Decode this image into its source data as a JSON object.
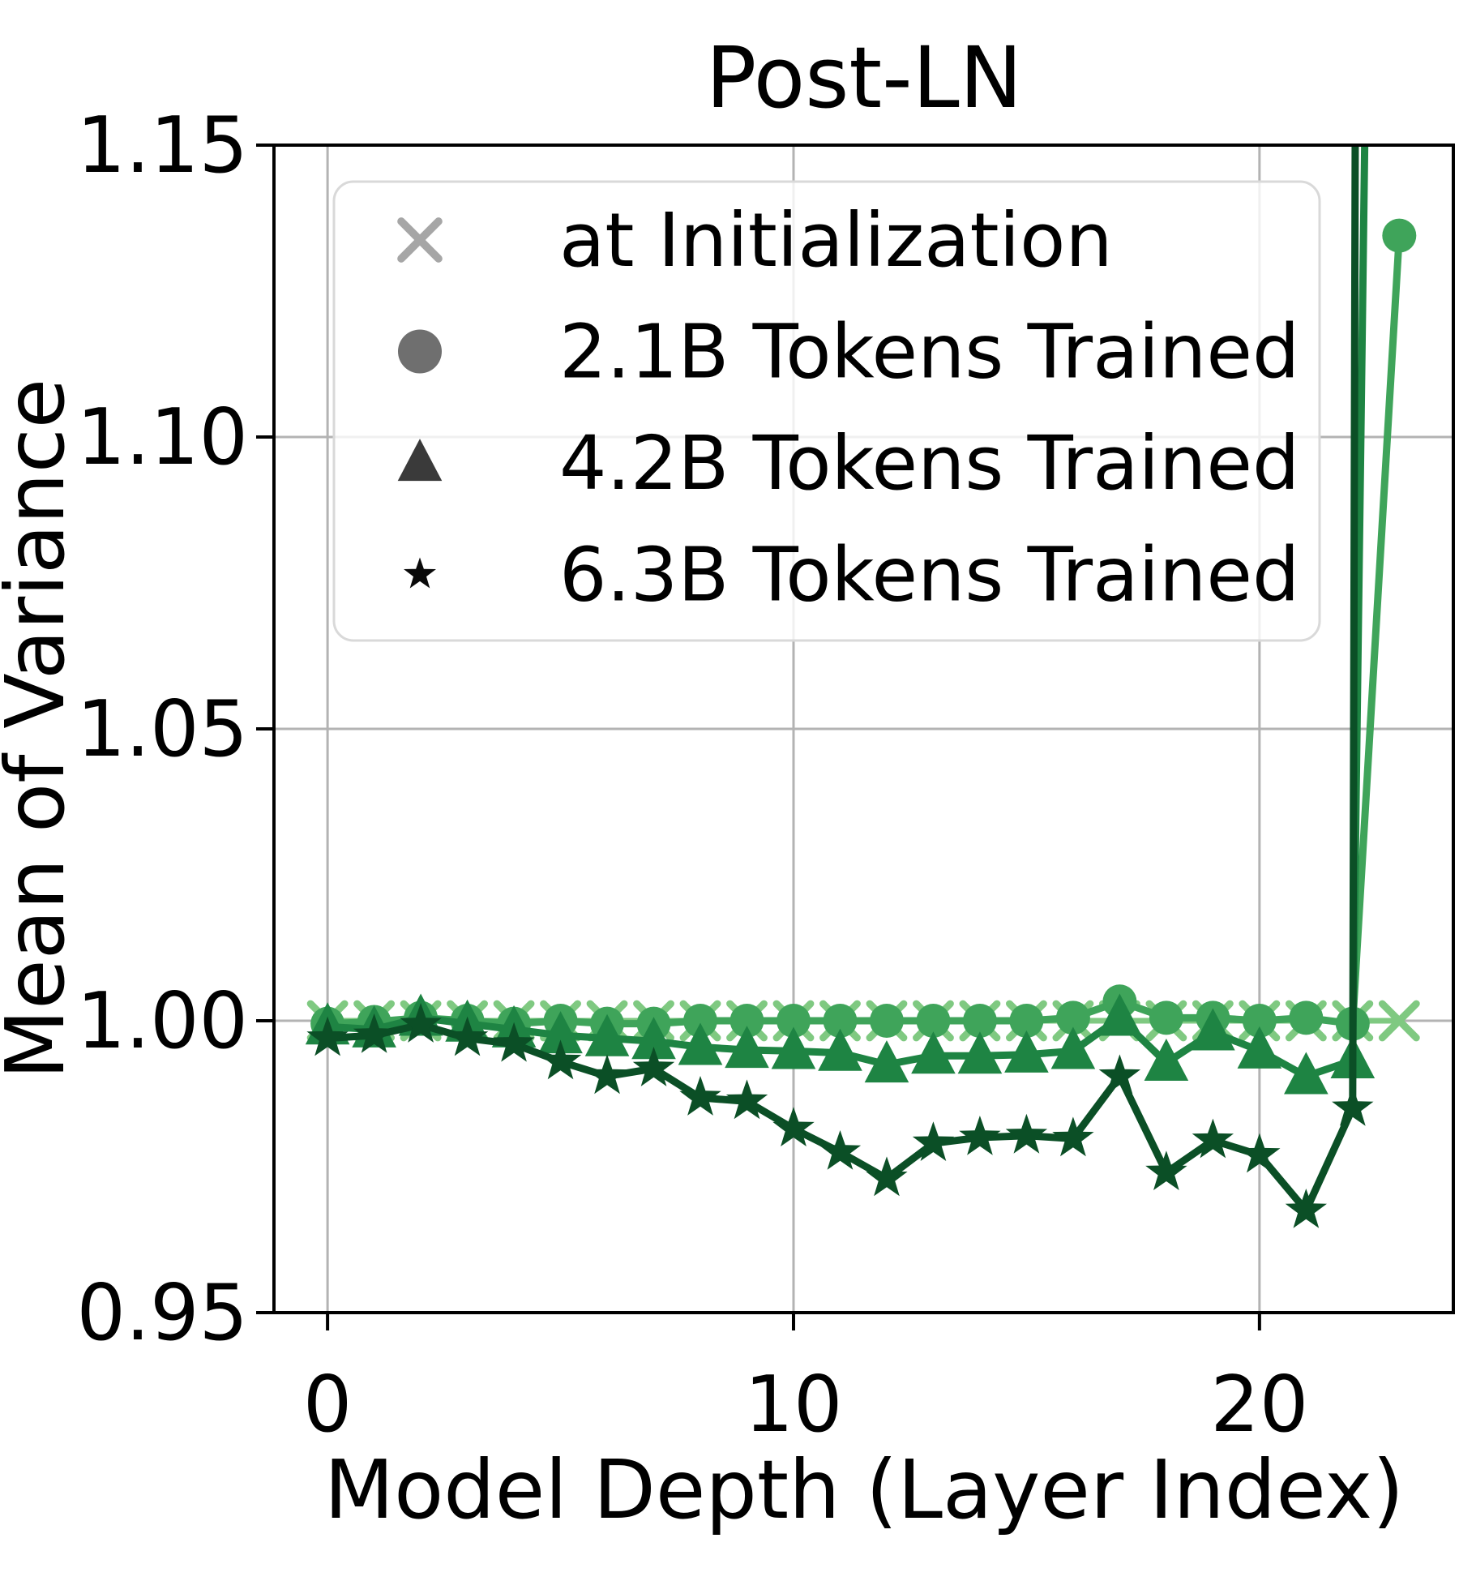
{
  "chart_data": {
    "type": "line",
    "title": "Post-LN",
    "xlabel": "Model Depth (Layer Index)",
    "ylabel": "Mean of Variance",
    "xlim": [
      -1.15,
      24.16
    ],
    "ylim": [
      0.95,
      1.15
    ],
    "grid": true,
    "legend_position": "upper left",
    "xticks": [
      {
        "v": 0,
        "label": "0"
      },
      {
        "v": 10,
        "label": "10"
      },
      {
        "v": 20,
        "label": "20"
      }
    ],
    "yticks": [
      {
        "v": 0.95,
        "label": "0.95"
      },
      {
        "v": 1.0,
        "label": "1.00"
      },
      {
        "v": 1.05,
        "label": "1.05"
      },
      {
        "v": 1.1,
        "label": "1.10"
      },
      {
        "v": 1.15,
        "label": "1.15"
      }
    ],
    "x": [
      0,
      1,
      2,
      3,
      4,
      5,
      6,
      7,
      8,
      9,
      10,
      11,
      12,
      13,
      14,
      15,
      16,
      17,
      18,
      19,
      20,
      21,
      22,
      23
    ],
    "series": [
      {
        "name": "at Initialization",
        "marker": "x",
        "color": "#7fc981",
        "legend_color": "#a6a6a6",
        "values": [
          1.0,
          1.0,
          1.0,
          1.0,
          1.0,
          1.0,
          1.0,
          1.0,
          1.0,
          1.0,
          1.0,
          1.0,
          1.0,
          1.0,
          1.0,
          1.0,
          1.0,
          1.0,
          1.0,
          1.0,
          1.0,
          1.0,
          1.0,
          1.0
        ]
      },
      {
        "name": "2.1B Tokens Trained",
        "marker": "circle",
        "color": "#3fa45a",
        "legend_color": "#6f6f6f",
        "values": [
          0.9995,
          0.9998,
          1.0005,
          1.0,
          0.9995,
          1.0,
          0.9995,
          0.9995,
          1.0,
          1.0,
          1.0,
          1.0,
          1.0,
          1.0,
          1.0,
          1.0,
          1.0005,
          1.0033,
          1.0005,
          1.0005,
          1.0,
          1.0005,
          0.9995,
          1.1345
        ]
      },
      {
        "name": "4.2B Tokens Trained",
        "marker": "triangle",
        "color": "#1e8443",
        "legend_color": "#3a3a3a",
        "values": [
          0.999,
          0.9985,
          1.0005,
          0.9995,
          0.9985,
          0.9975,
          0.997,
          0.9965,
          0.9955,
          0.995,
          0.9948,
          0.9945,
          0.9925,
          0.994,
          0.994,
          0.9942,
          0.9948,
          1.0005,
          0.9928,
          0.998,
          0.9949,
          0.9905,
          0.9932,
          1.6
        ]
      },
      {
        "name": "6.3B Tokens Trained",
        "marker": "star",
        "color": "#0b4f26",
        "legend_color": "#0a0a0a",
        "values": [
          0.997,
          0.9975,
          0.9993,
          0.997,
          0.996,
          0.993,
          0.9905,
          0.9918,
          0.9868,
          0.9862,
          0.9815,
          0.9775,
          0.973,
          0.979,
          0.98,
          0.9803,
          0.9798,
          0.9905,
          0.974,
          0.9795,
          0.977,
          0.9675,
          0.985,
          4.0
        ]
      }
    ]
  }
}
